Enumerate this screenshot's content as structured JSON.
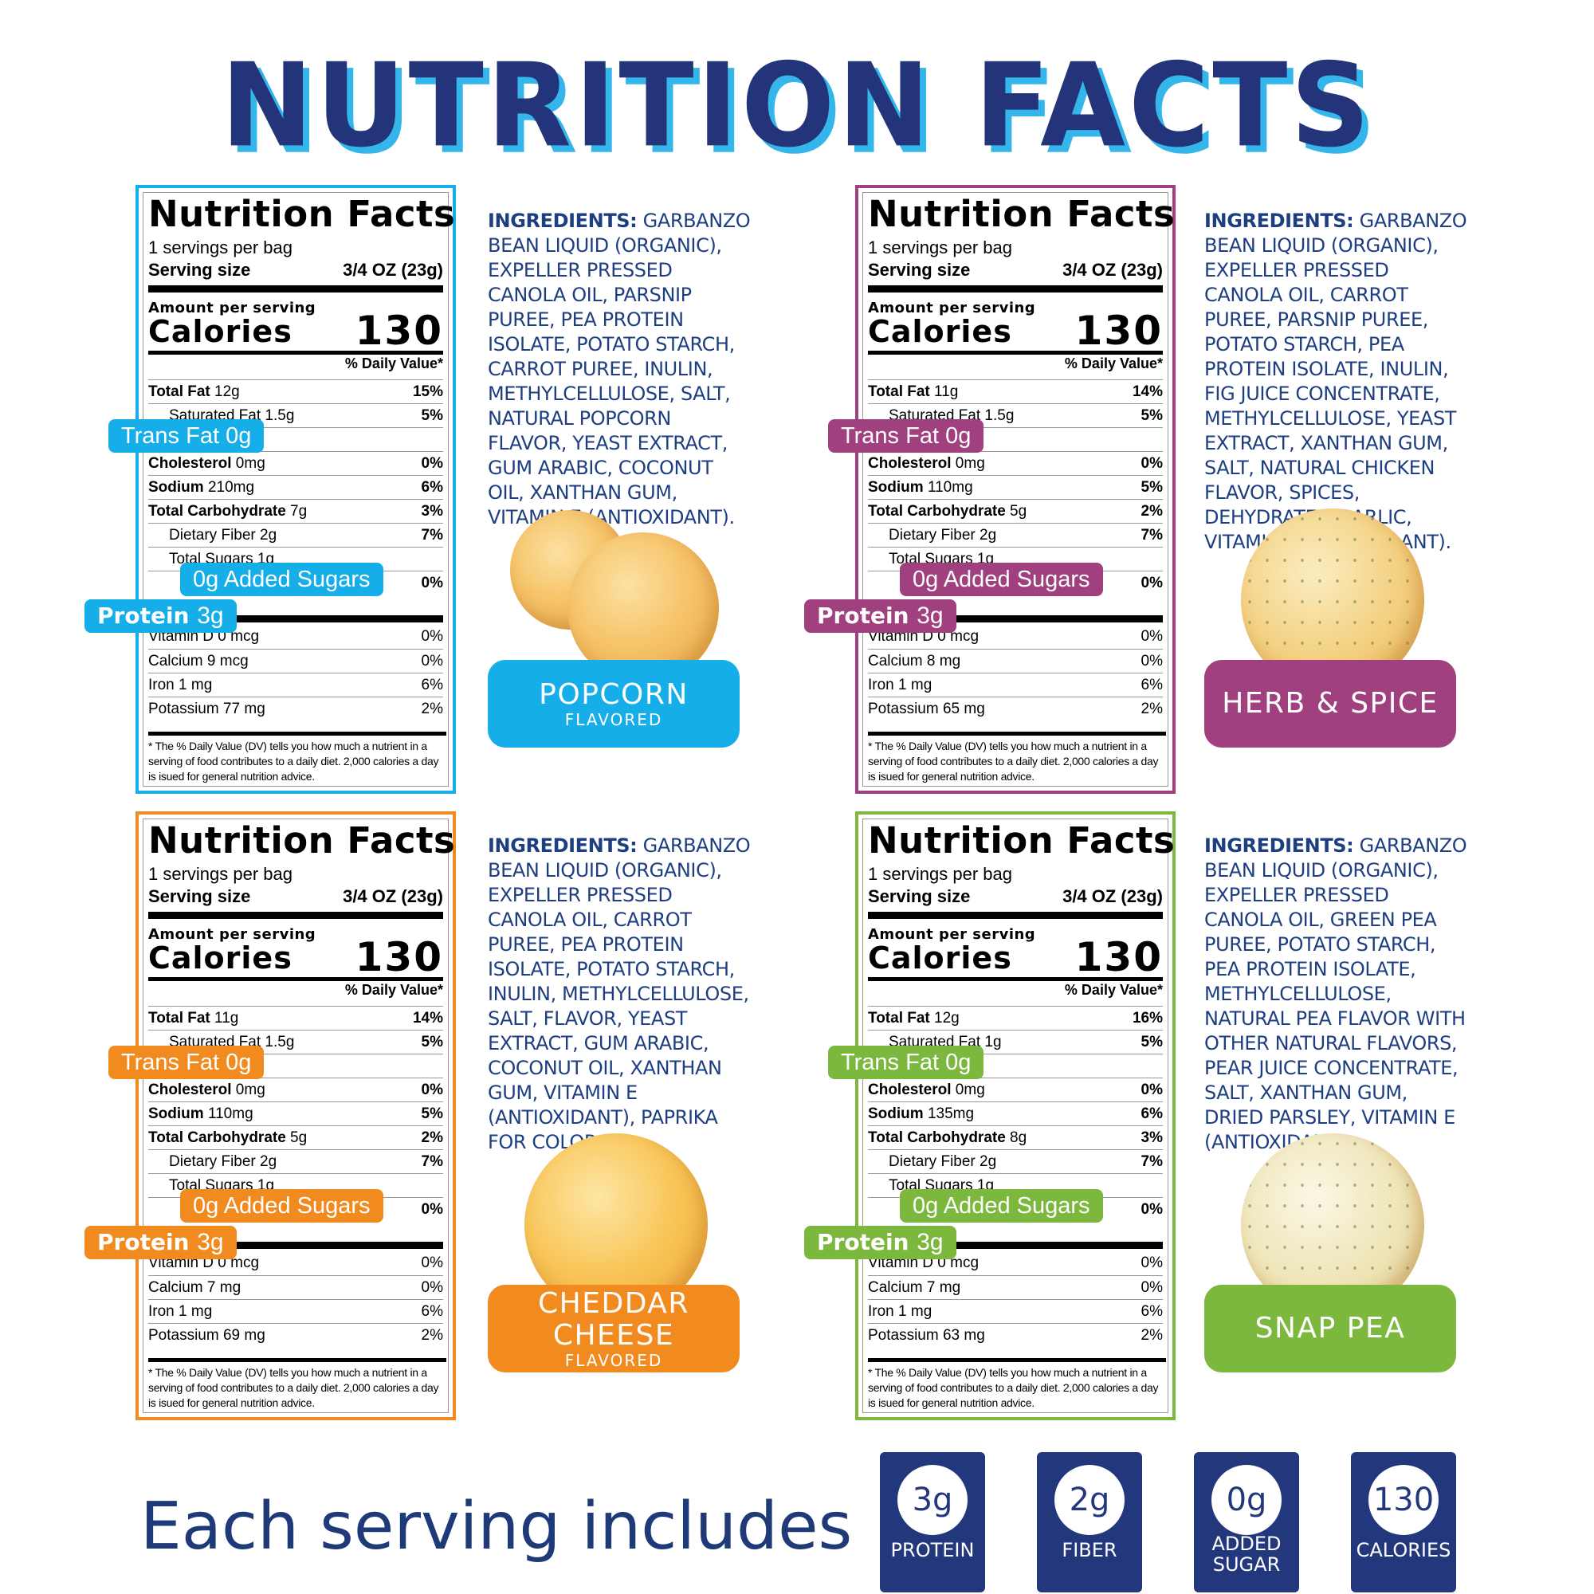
{
  "page_title": "NUTRITION FACTS",
  "colors": {
    "popcorn": "#16aee8",
    "herb": "#a0407f",
    "cheddar": "#f18a1f",
    "pea": "#7db83e",
    "navy": "#23387c",
    "title_shadow": "#35b6ea"
  },
  "labels": [
    {
      "title": "Nutrition Facts",
      "servings": "1 servings per bag",
      "serving_size_label": "Serving size",
      "serving_size_value": "3/4 OZ (23g)",
      "amount_per_serving": "Amount per serving",
      "calories_label": "Calories",
      "calories_value": "130",
      "dv_header": "% Daily Value*",
      "total_fat_label": "Total Fat",
      "total_fat": "12g",
      "total_fat_dv": "15%",
      "sat_fat": "Saturated Fat 1.5g",
      "sat_fat_dv": "5%",
      "cholesterol_label": "Cholesterol",
      "cholesterol": "0mg",
      "cholesterol_dv": "0%",
      "sodium_label": "Sodium",
      "sodium": "210mg",
      "sodium_dv": "6%",
      "carb_label": "Total Carbohydrate",
      "carb": "7g",
      "carb_dv": "3%",
      "fiber": "Dietary Fiber 2g",
      "fiber_dv": "7%",
      "sugars": "Total Sugars 1g",
      "added_sugar_dv": "0%",
      "vitamin_d": "Vitamin D 0 mcg",
      "vitamin_d_dv": "0%",
      "calcium": "Calcium 9 mcg",
      "calcium_dv": "0%",
      "iron": "Iron 1 mg",
      "iron_dv": "6%",
      "potassium": "Potassium 77 mg",
      "potassium_dv": "2%",
      "footnote": "* The % Daily Value (DV) tells you how much a nutrient in a serving of food contributes to a daily diet. 2,000 calories a day is isued for general nutrition advice.",
      "tag_trans": "Trans Fat 0g",
      "tag_added": "0g Added Sugars",
      "tag_protein_label": "Protein",
      "tag_protein_value": "3g"
    },
    {
      "title": "Nutrition Facts",
      "servings": "1 servings per bag",
      "serving_size_label": "Serving size",
      "serving_size_value": "3/4 OZ (23g)",
      "amount_per_serving": "Amount per serving",
      "calories_label": "Calories",
      "calories_value": "130",
      "dv_header": "% Daily Value*",
      "total_fat_label": "Total Fat",
      "total_fat": "11g",
      "total_fat_dv": "14%",
      "sat_fat": "Saturated Fat 1.5g",
      "sat_fat_dv": "5%",
      "cholesterol_label": "Cholesterol",
      "cholesterol": "0mg",
      "cholesterol_dv": "0%",
      "sodium_label": "Sodium",
      "sodium": "110mg",
      "sodium_dv": "5%",
      "carb_label": "Total Carbohydrate",
      "carb": "5g",
      "carb_dv": "2%",
      "fiber": "Dietary Fiber 2g",
      "fiber_dv": "7%",
      "sugars": "Total Sugars 1g",
      "added_sugar_dv": "0%",
      "vitamin_d": "Vitamin D 0 mcg",
      "vitamin_d_dv": "0%",
      "calcium": "Calcium 8 mg",
      "calcium_dv": "0%",
      "iron": "Iron 1 mg",
      "iron_dv": "6%",
      "potassium": "Potassium 65 mg",
      "potassium_dv": "2%",
      "footnote": "* The % Daily Value (DV) tells you how much a nutrient in a serving of food contributes to a daily diet. 2,000 calories a day is isued for general nutrition advice.",
      "tag_trans": "Trans Fat 0g",
      "tag_added": "0g Added Sugars",
      "tag_protein_label": "Protein",
      "tag_protein_value": "3g"
    },
    {
      "title": "Nutrition Facts",
      "servings": "1 servings per bag",
      "serving_size_label": "Serving size",
      "serving_size_value": "3/4 OZ (23g)",
      "amount_per_serving": "Amount per serving",
      "calories_label": "Calories",
      "calories_value": "130",
      "dv_header": "% Daily Value*",
      "total_fat_label": "Total Fat",
      "total_fat": "11g",
      "total_fat_dv": "14%",
      "sat_fat": "Saturated Fat 1.5g",
      "sat_fat_dv": "5%",
      "cholesterol_label": "Cholesterol",
      "cholesterol": "0mg",
      "cholesterol_dv": "0%",
      "sodium_label": "Sodium",
      "sodium": "110mg",
      "sodium_dv": "5%",
      "carb_label": "Total Carbohydrate",
      "carb": "5g",
      "carb_dv": "2%",
      "fiber": "Dietary Fiber 2g",
      "fiber_dv": "7%",
      "sugars": "Total Sugars 1g",
      "added_sugar_dv": "0%",
      "vitamin_d": "Vitamin D 0 mcg",
      "vitamin_d_dv": "0%",
      "calcium": "Calcium 7 mg",
      "calcium_dv": "0%",
      "iron": "Iron 1 mg",
      "iron_dv": "6%",
      "potassium": "Potassium 69 mg",
      "potassium_dv": "2%",
      "footnote": "* The % Daily Value (DV) tells you how much a nutrient in a serving of food contributes to a daily diet. 2,000 calories a day is isued for general nutrition advice.",
      "tag_trans": "Trans Fat 0g",
      "tag_added": "0g Added Sugars",
      "tag_protein_label": "Protein",
      "tag_protein_value": "3g"
    },
    {
      "title": "Nutrition Facts",
      "servings": "1 servings per bag",
      "serving_size_label": "Serving size",
      "serving_size_value": "3/4 OZ (23g)",
      "amount_per_serving": "Amount per serving",
      "calories_label": "Calories",
      "calories_value": "130",
      "dv_header": "% Daily Value*",
      "total_fat_label": "Total Fat",
      "total_fat": "12g",
      "total_fat_dv": "16%",
      "sat_fat": "Saturated Fat 1g",
      "sat_fat_dv": "5%",
      "cholesterol_label": "Cholesterol",
      "cholesterol": "0mg",
      "cholesterol_dv": "0%",
      "sodium_label": "Sodium",
      "sodium": "135mg",
      "sodium_dv": "6%",
      "carb_label": "Total Carbohydrate",
      "carb": "8g",
      "carb_dv": "3%",
      "fiber": "Dietary Fiber 2g",
      "fiber_dv": "7%",
      "sugars": "Total Sugars 1g",
      "added_sugar_dv": "0%",
      "vitamin_d": "Vitamin D 0 mcg",
      "vitamin_d_dv": "0%",
      "calcium": "Calcium 7 mg",
      "calcium_dv": "0%",
      "iron": "Iron 1 mg",
      "iron_dv": "6%",
      "potassium": "Potassium 63 mg",
      "potassium_dv": "2%",
      "footnote": "* The % Daily Value (DV) tells you how much a nutrient in a serving of food contributes to a daily diet. 2,000 calories a day is isued for general nutrition advice.",
      "tag_trans": "Trans Fat 0g",
      "tag_added": "0g Added Sugars",
      "tag_protein_label": "Protein",
      "tag_protein_value": "3g"
    }
  ],
  "ingredients": [
    {
      "head": "INGREDIENTS:",
      "text": "GARBANZO BEAN LIQUID (ORGANIC), EXPELLER PRESSED CANOLA OIL, PARSNIP PUREE, PEA PROTEIN ISOLATE, POTATO STARCH, CARROT PUREE, INULIN, METHYLCELLULOSE, SALT, NATURAL POPCORN FLAVOR, YEAST EXTRACT, GUM ARABIC, COCONUT OIL, XANTHAN GUM, VITAMIN E (ANTIOXIDANT)."
    },
    {
      "head": "INGREDIENTS:",
      "text": "GARBANZO BEAN LIQUID (ORGANIC), EXPELLER PRESSED CANOLA OIL, CARROT PUREE, PARSNIP PUREE, POTATO STARCH, PEA PROTEIN ISOLATE, INULIN, FIG JUICE CONCENTRATE, METHYLCELLULOSE, YEAST EXTRACT,  XANTHAN GUM, SALT, NATURAL CHICKEN FLAVOR, SPICES, DEHYDRATED GARLIC, VITAMIN E (ANTIOXIDANT)."
    },
    {
      "head": "INGREDIENTS:",
      "text": "GARBANZO BEAN LIQUID (ORGANIC), EXPELLER PRESSED CANOLA OIL, CARROT PUREE, PEA PROTEIN ISOLATE, POTATO STARCH, INULIN, METHYLCELLULOSE, SALT, FLAVOR, YEAST EXTRACT, GUM ARABIC, COCONUT OIL, XANTHAN GUM, VITAMIN E (ANTIOXIDANT), PAPRIKA FOR COLOR."
    },
    {
      "head": "INGREDIENTS:",
      "text": "GARBANZO BEAN LIQUID (ORGANIC), EXPELLER PRESSED CANOLA OIL, GREEN PEA PUREE, POTATO STARCH, PEA PROTEIN ISOLATE, METHYLCELLULOSE, NATURAL PEA FLAVOR WITH OTHER NATURAL FLAVORS, PEAR JUICE CONCENTRATE, SALT, XANTHAN GUM, DRIED PARSLEY, VITAMIN E (ANTIOXIDANT)."
    }
  ],
  "flavors": [
    {
      "main": "POPCORN",
      "sub": "FLAVORED"
    },
    {
      "main": "HERB & SPICE",
      "sub": ""
    },
    {
      "main": "CHEDDAR CHEESE",
      "sub": "FLAVORED"
    },
    {
      "main": "SNAP PEA",
      "sub": ""
    }
  ],
  "each_serving": "Each serving includes",
  "badges": [
    {
      "value": "3g",
      "label": "PROTEIN"
    },
    {
      "value": "2g",
      "label": "FIBER"
    },
    {
      "value": "0g",
      "label": "ADDED SUGAR"
    },
    {
      "value": "130",
      "label": "CALORIES"
    }
  ]
}
